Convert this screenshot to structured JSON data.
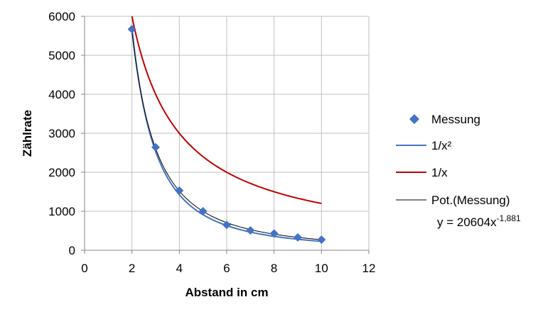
{
  "chart_data": {
    "type": "scatter",
    "xlabel": "Abstand in cm",
    "ylabel": "Zählrate",
    "xlim": [
      0,
      12
    ],
    "ylim": [
      0,
      6000
    ],
    "xticks": [
      0,
      2,
      4,
      6,
      8,
      10,
      12
    ],
    "yticks": [
      0,
      1000,
      2000,
      3000,
      4000,
      5000,
      6000
    ],
    "grid": true,
    "legend_position": "right",
    "series": [
      {
        "name": "Messung",
        "kind": "scatter",
        "marker": "diamond",
        "color": "#4472C4",
        "x": [
          2,
          3,
          4,
          5,
          6,
          7,
          8,
          9,
          10
        ],
        "y": [
          5670,
          2640,
          1530,
          1000,
          650,
          510,
          430,
          330,
          270
        ]
      },
      {
        "name": "1/x²",
        "kind": "line",
        "color": "#4472C4",
        "function": "22800/x^2",
        "x_range": [
          2,
          10
        ]
      },
      {
        "name": "1/x",
        "kind": "line",
        "color": "#C00000",
        "function": "12000/x",
        "x_range": [
          2,
          10
        ]
      },
      {
        "name": "Pot.(Messung)",
        "kind": "trendline",
        "color": "#000000",
        "coefficient": 20604,
        "exponent": -1.881,
        "x_range": [
          2,
          10
        ],
        "equation_prefix": "y = 20604x",
        "equation_exponent": "-1,881"
      }
    ]
  }
}
